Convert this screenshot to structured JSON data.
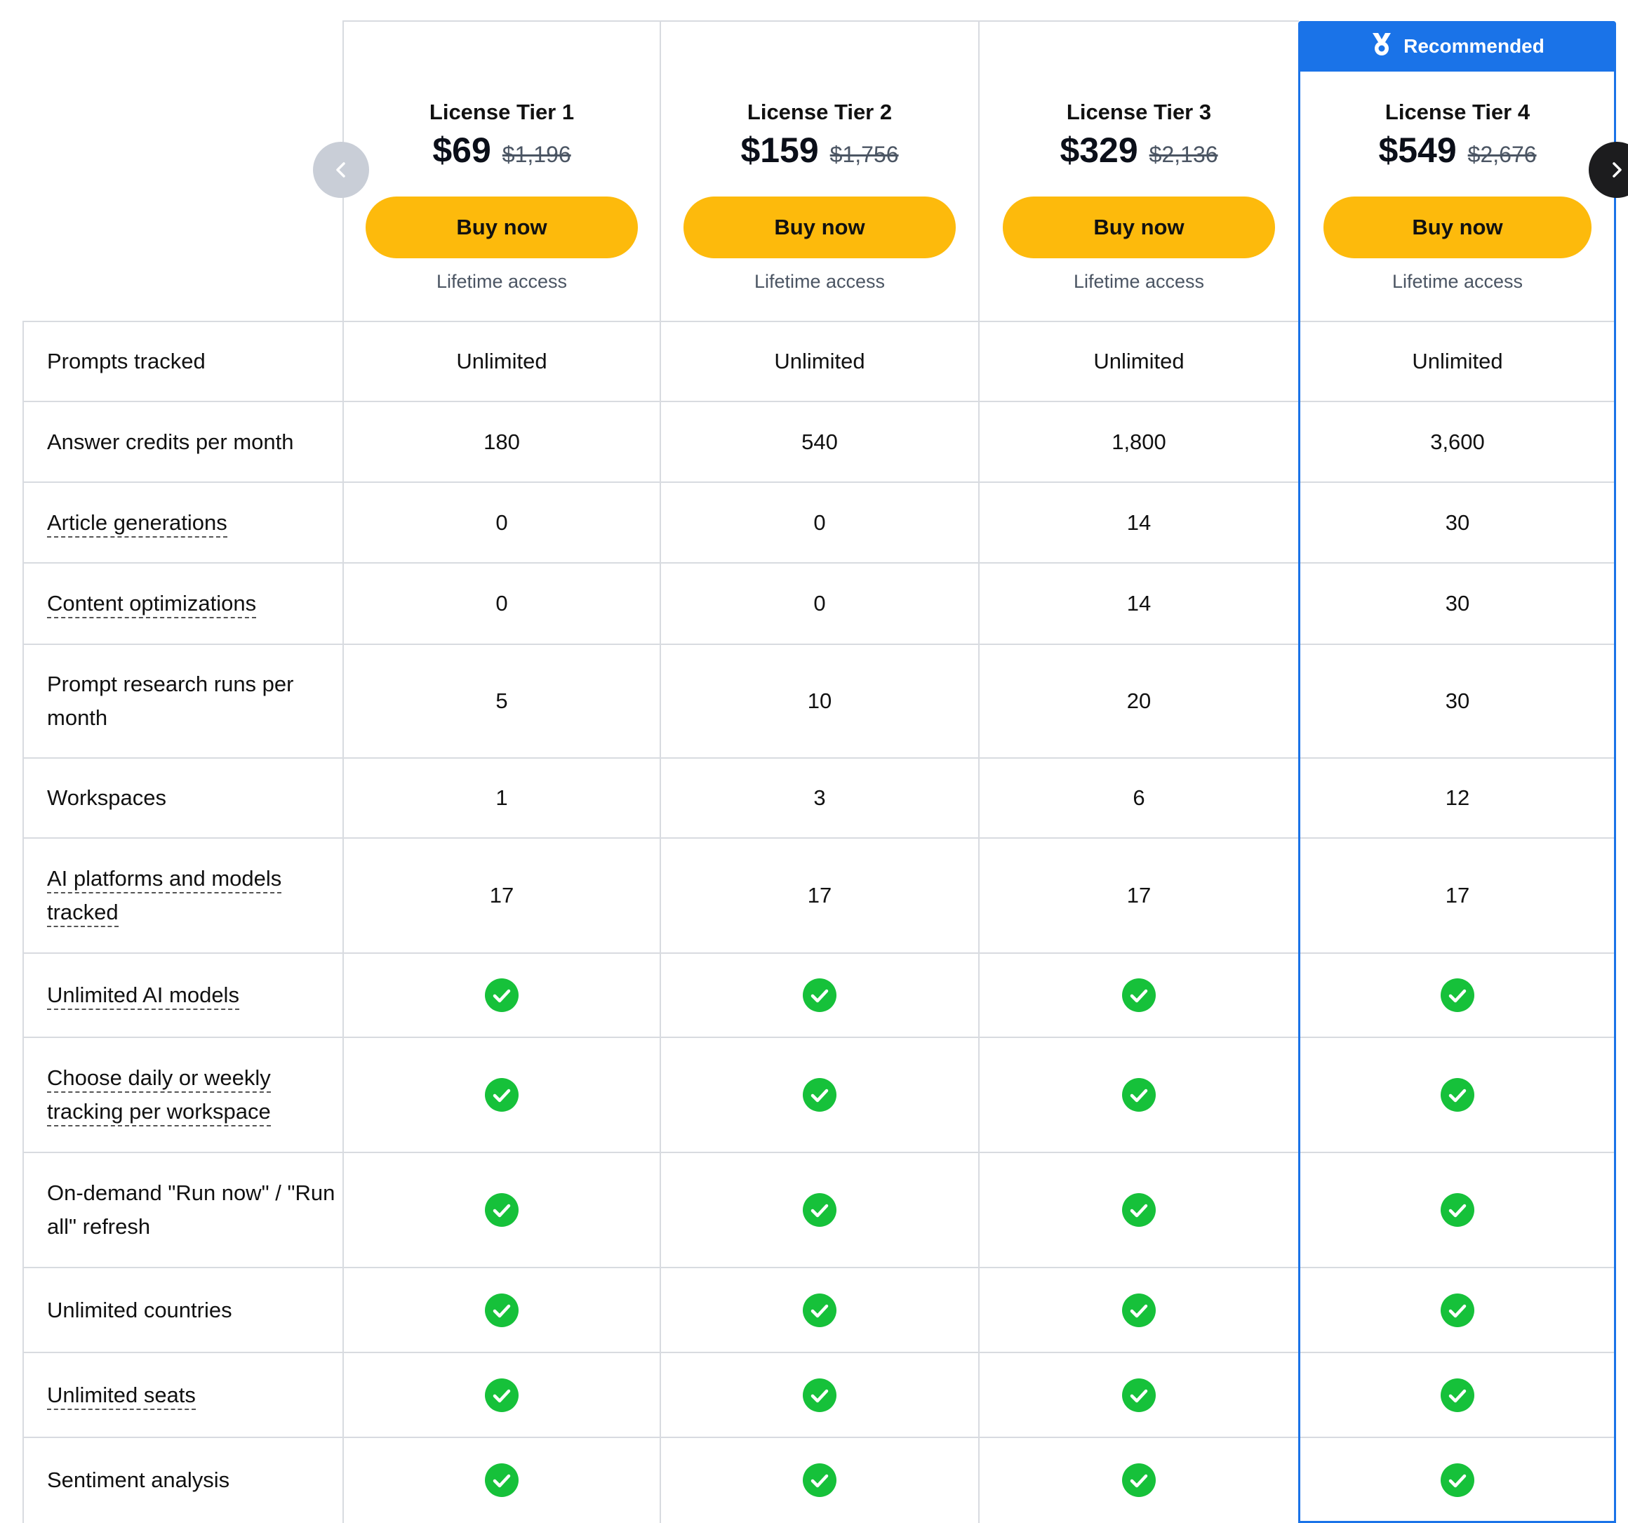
{
  "banner": {
    "label": "Recommended"
  },
  "tiers": [
    {
      "name": "License Tier 1",
      "price": "$69",
      "old_price": "$1,196",
      "cta": "Buy now",
      "access": "Lifetime access"
    },
    {
      "name": "License Tier 2",
      "price": "$159",
      "old_price": "$1,756",
      "cta": "Buy now",
      "access": "Lifetime access"
    },
    {
      "name": "License Tier 3",
      "price": "$329",
      "old_price": "$2,136",
      "cta": "Buy now",
      "access": "Lifetime access"
    },
    {
      "name": "License Tier 4",
      "price": "$549",
      "old_price": "$2,676",
      "cta": "Buy now",
      "access": "Lifetime access"
    }
  ],
  "features": [
    {
      "label": "Prompts tracked",
      "tooltip": false,
      "values": [
        "Unlimited",
        "Unlimited",
        "Unlimited",
        "Unlimited"
      ]
    },
    {
      "label": "Answer credits per month",
      "tooltip": false,
      "values": [
        "180",
        "540",
        "1,800",
        "3,600"
      ]
    },
    {
      "label": "Article generations",
      "tooltip": true,
      "values": [
        "0",
        "0",
        "14",
        "30"
      ]
    },
    {
      "label": "Content optimizations",
      "tooltip": true,
      "values": [
        "0",
        "0",
        "14",
        "30"
      ]
    },
    {
      "label": "Prompt research runs per month",
      "tooltip": false,
      "values": [
        "5",
        "10",
        "20",
        "30"
      ]
    },
    {
      "label": "Workspaces",
      "tooltip": false,
      "values": [
        "1",
        "3",
        "6",
        "12"
      ]
    },
    {
      "label": "AI platforms and models tracked",
      "tooltip": true,
      "values": [
        "17",
        "17",
        "17",
        "17"
      ]
    },
    {
      "label": "Unlimited AI models",
      "tooltip": true,
      "values": [
        true,
        true,
        true,
        true
      ]
    },
    {
      "label": "Choose daily or weekly tracking per workspace",
      "tooltip": true,
      "values": [
        true,
        true,
        true,
        true
      ]
    },
    {
      "label": "On-demand \"Run now\" / \"Run all\" refresh",
      "tooltip": false,
      "values": [
        true,
        true,
        true,
        true
      ]
    },
    {
      "label": "Unlimited countries",
      "tooltip": false,
      "values": [
        true,
        true,
        true,
        true
      ]
    },
    {
      "label": "Unlimited seats",
      "tooltip": true,
      "values": [
        true,
        true,
        true,
        true
      ]
    },
    {
      "label": "Sentiment analysis",
      "tooltip": false,
      "values": [
        true,
        true,
        true,
        true
      ]
    }
  ],
  "colors": {
    "accent": "#1a73e8",
    "cta": "#fdba0c",
    "check": "#16c13a"
  },
  "icons": {
    "banner": "medal-icon",
    "prev": "chevron-left-icon",
    "next": "chevron-right-icon",
    "included": "check-circle-icon"
  }
}
